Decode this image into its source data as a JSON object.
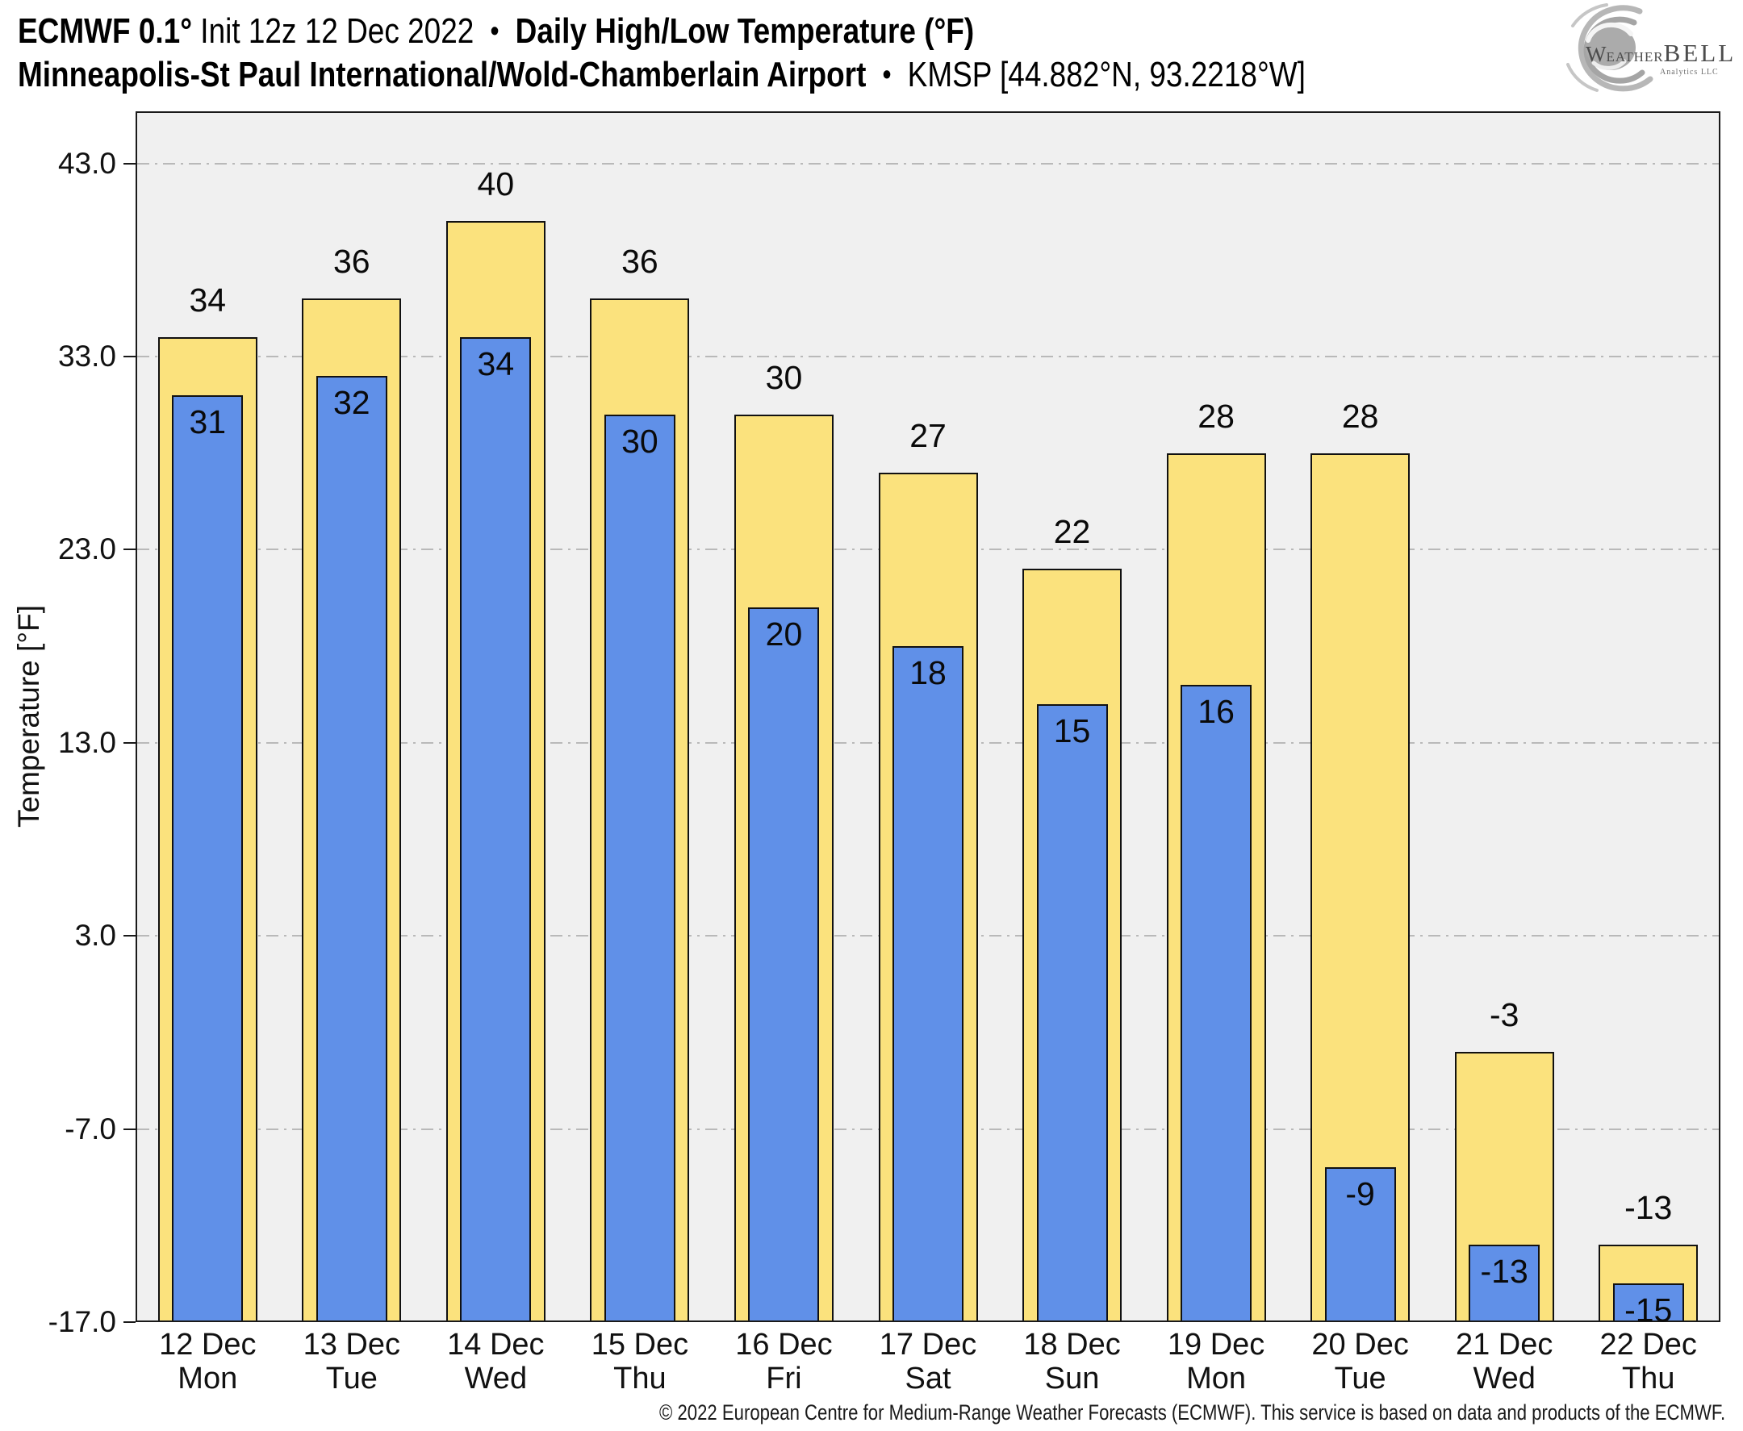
{
  "header": {
    "model": "ECMWF 0.1°",
    "init": "Init 12z 12 Dec 2022",
    "sep1": "•",
    "product": "Daily High/Low Temperature (°F)",
    "station_name": "Minneapolis-St Paul International/Wold-Chamberlain Airport",
    "sep2": "•",
    "station_id": "KMSP [44.882°N, 93.2218°W]"
  },
  "logo": {
    "brand_w": "W",
    "brand_eather": "EATHER",
    "brand_bell": "BELL",
    "brand_sub": "Analytics LLC"
  },
  "chart_data": {
    "type": "bar",
    "title": "Daily High/Low Temperature (°F)",
    "station": "KMSP Minneapolis-St Paul International/Wold-Chamberlain Airport",
    "xlabel": "",
    "ylabel": "Temperature [°F]",
    "ylim": [
      -17,
      45.7
    ],
    "yticks": [
      43.0,
      33.0,
      23.0,
      13.0,
      3.0,
      -7.0,
      -17.0
    ],
    "grid": {
      "axis": "y",
      "style": "dash-dot",
      "color": "#b9b9b9"
    },
    "legend": "none",
    "plot_bg": "#f0f0f0",
    "categories": [
      {
        "date": "12 Dec",
        "day": "Mon"
      },
      {
        "date": "13 Dec",
        "day": "Tue"
      },
      {
        "date": "14 Dec",
        "day": "Wed"
      },
      {
        "date": "15 Dec",
        "day": "Thu"
      },
      {
        "date": "16 Dec",
        "day": "Fri"
      },
      {
        "date": "17 Dec",
        "day": "Sat"
      },
      {
        "date": "18 Dec",
        "day": "Sun"
      },
      {
        "date": "19 Dec",
        "day": "Mon"
      },
      {
        "date": "20 Dec",
        "day": "Tue"
      },
      {
        "date": "21 Dec",
        "day": "Wed"
      },
      {
        "date": "22 Dec",
        "day": "Thu"
      }
    ],
    "series": [
      {
        "name": "High",
        "color": "#FBE27D",
        "values": [
          34,
          36,
          40,
          36,
          30,
          27,
          22,
          28,
          28,
          -3,
          -13
        ]
      },
      {
        "name": "Low",
        "color": "#6090E8",
        "values": [
          31,
          32,
          34,
          30,
          20,
          18,
          15,
          16,
          -9,
          -13,
          -15
        ]
      }
    ]
  },
  "footer": {
    "copyright": "© 2022 European Centre for Medium-Range Weather Forecasts (ECMWF). This service is based on data and products of the ECMWF."
  }
}
